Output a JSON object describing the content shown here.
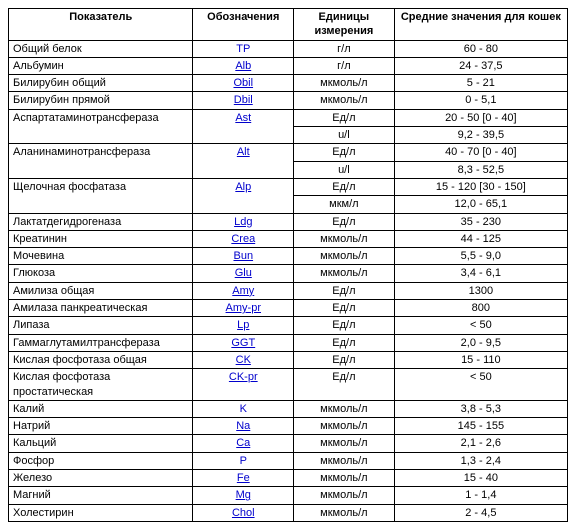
{
  "header": {
    "col1": "Показатель",
    "col2": "Обозначения",
    "col3": "Единицы измерения",
    "col4": "Средние значения для кошек"
  },
  "rows": [
    {
      "param": "Общий белок",
      "sym": "TP",
      "link": false,
      "unit": "г/л",
      "val": "60 - 80"
    },
    {
      "param": "Альбумин",
      "sym": "Alb",
      "link": true,
      "unit": "г/л",
      "val": "24 - 37,5"
    },
    {
      "param": "Билирубин общий",
      "sym": "Obil",
      "link": true,
      "unit": "мкмоль/л",
      "val": "5 - 21"
    },
    {
      "param": "Билирубин прямой",
      "sym": "Dbil",
      "link": true,
      "unit": "мкмоль/л",
      "val": "0 - 5,1"
    },
    {
      "param": "Аспартатаминотрансфераза",
      "sym": "Ast",
      "link": true,
      "unit": "Ед/л",
      "val": "20 - 50 [0 - 40]",
      "sub": {
        "unit": "u/l",
        "val": "9,2 - 39,5"
      }
    },
    {
      "param": "Аланинаминотрансфераза",
      "sym": "Alt",
      "link": true,
      "unit": "Ед/л",
      "val": "40 - 70 [0 - 40]",
      "sub": {
        "unit": "u/l",
        "val": "8,3 - 52,5"
      }
    },
    {
      "param": "Щелочная фосфатаза",
      "sym": "Alp",
      "link": true,
      "unit": "Ед/л",
      "val": "15 - 120 [30 - 150]",
      "sub": {
        "unit": "мкм/л",
        "val": "12,0 - 65,1"
      }
    },
    {
      "param": "Лактатдегидрогеназа",
      "sym": "Ldg",
      "link": true,
      "unit": "Ед/л",
      "val": "35 - 230"
    },
    {
      "param": "Креатинин",
      "sym": "Crea",
      "link": true,
      "unit": "мкмоль/л",
      "val": "44 - 125"
    },
    {
      "param": "Мочевина",
      "sym": "Bun",
      "link": true,
      "unit": "мкмоль/л",
      "val": "5,5 - 9,0"
    },
    {
      "param": "Глюкоза",
      "sym": "Glu",
      "link": true,
      "unit": "мкмоль/л",
      "val": "3,4 - 6,1"
    },
    {
      "param": "Амилиза общая",
      "sym": "Amy",
      "link": true,
      "unit": "Ед/л",
      "val": "1300"
    },
    {
      "param": "Амилаза панкреатическая",
      "sym": "Amy-pr",
      "link": true,
      "unit": "Ед/л",
      "val": "800"
    },
    {
      "param": "Липаза",
      "sym": "Lp",
      "link": true,
      "unit": "Ед/л",
      "val": "< 50"
    },
    {
      "param": "Гаммаглутамилтрансфераза",
      "sym": "GGT",
      "link": true,
      "unit": "Ед/л",
      "val": "2,0 - 9,5"
    },
    {
      "param": "Кислая фосфотаза общая",
      "sym": "CK",
      "link": true,
      "unit": "Ед/л",
      "val": "15 - 110"
    },
    {
      "param": "Кислая фосфотаза простатическая",
      "sym": "CK-pr",
      "link": true,
      "unit": "Ед/л",
      "val": "< 50"
    },
    {
      "param": "Калий",
      "sym": "K",
      "link": false,
      "unit": "мкмоль/л",
      "val": "3,8 - 5,3"
    },
    {
      "param": "Натрий",
      "sym": "Na",
      "link": true,
      "unit": "мкмоль/л",
      "val": "145 - 155"
    },
    {
      "param": "Кальций",
      "sym": "Ca",
      "link": true,
      "unit": "мкмоль/л",
      "val": "2,1 - 2,6"
    },
    {
      "param": "Фосфор",
      "sym": "P",
      "link": false,
      "unit": "мкмоль/л",
      "val": "1,3 - 2,4"
    },
    {
      "param": "Железо",
      "sym": "Fe",
      "link": true,
      "unit": "мкмоль/л",
      "val": "15 - 40"
    },
    {
      "param": "Магний",
      "sym": "Mg",
      "link": true,
      "unit": "мкмоль/л",
      "val": "1 - 1,4"
    },
    {
      "param": "Холестирин",
      "sym": "Chol",
      "link": true,
      "unit": "мкмоль/л",
      "val": "2 - 4,5"
    }
  ],
  "style": {
    "font_family": "Verdana",
    "font_size_pt": 8,
    "text_color": "#000000",
    "link_color": "#0000cc",
    "border_color": "#000000",
    "background_color": "#ffffff"
  }
}
